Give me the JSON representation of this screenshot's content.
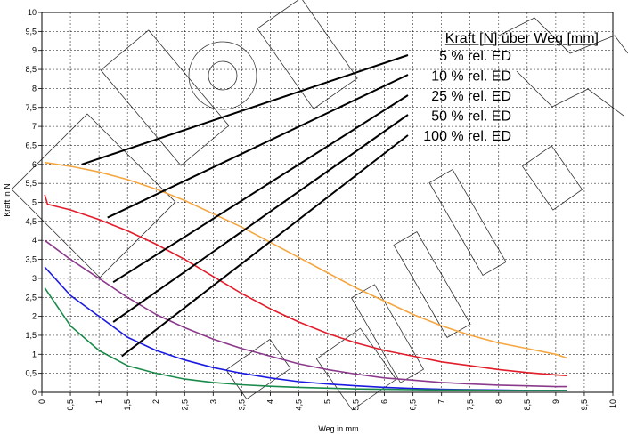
{
  "chart_data": {
    "type": "line",
    "title": "",
    "xlabel": "Weg in mm",
    "ylabel": "Kraft in N",
    "xlim": [
      0,
      10
    ],
    "ylim": [
      0,
      10
    ],
    "x_ticks": [
      "0",
      "0,5",
      "1",
      "1,5",
      "2",
      "2,5",
      "3",
      "3,5",
      "4",
      "4,5",
      "5",
      "5,5",
      "6",
      "6,5",
      "7",
      "7,5",
      "8",
      "8,5",
      "9",
      "9,5",
      "10"
    ],
    "y_ticks": [
      "0",
      "0,5",
      "1",
      "1,5",
      "2",
      "2,5",
      "3",
      "3,5",
      "4",
      "4,5",
      "5",
      "5,5",
      "6",
      "6,5",
      "7",
      "7,5",
      "8",
      "8,5",
      "9",
      "9,5",
      "10"
    ],
    "grid": true,
    "legend": {
      "title": "Kraft [N] über Weg [mm]",
      "position": "top-right",
      "entries": [
        "5 % rel. ED",
        "10 % rel. ED",
        "25 % rel. ED",
        "50 % rel. ED",
        "100 % rel. ED"
      ]
    },
    "series": [
      {
        "name": "5 % rel. ED",
        "color": "#f5a640",
        "x": [
          0.05,
          0.5,
          1,
          1.5,
          2,
          2.5,
          3,
          3.5,
          4,
          4.5,
          5,
          5.5,
          6,
          6.5,
          7,
          7.5,
          8,
          8.5,
          9,
          9.2
        ],
        "y": [
          6.05,
          5.95,
          5.8,
          5.6,
          5.35,
          5.05,
          4.7,
          4.35,
          3.95,
          3.55,
          3.15,
          2.75,
          2.4,
          2.05,
          1.75,
          1.5,
          1.3,
          1.15,
          1.0,
          0.9
        ]
      },
      {
        "name": "10 % rel. ED",
        "color": "#e21c2a",
        "x": [
          0.05,
          0.1,
          0.5,
          1,
          1.5,
          2,
          2.5,
          3,
          3.5,
          4,
          4.5,
          5,
          5.5,
          6,
          6.5,
          7,
          7.5,
          8,
          8.5,
          9,
          9.2
        ],
        "y": [
          5.2,
          4.95,
          4.8,
          4.55,
          4.25,
          3.9,
          3.5,
          3.05,
          2.6,
          2.2,
          1.85,
          1.55,
          1.3,
          1.1,
          0.95,
          0.8,
          0.7,
          0.6,
          0.52,
          0.46,
          0.44
        ]
      },
      {
        "name": "25 % rel. ED",
        "color": "#8b3a8b",
        "x": [
          0.05,
          0.5,
          1,
          1.5,
          2,
          2.5,
          3,
          3.5,
          4,
          4.5,
          5,
          5.5,
          6,
          6.5,
          7,
          7.5,
          8,
          8.5,
          9,
          9.2
        ],
        "y": [
          4.0,
          3.5,
          3.0,
          2.5,
          2.05,
          1.7,
          1.4,
          1.15,
          0.95,
          0.75,
          0.6,
          0.48,
          0.38,
          0.32,
          0.26,
          0.22,
          0.19,
          0.17,
          0.15,
          0.15
        ]
      },
      {
        "name": "50 % rel. ED",
        "color": "#1a1ae0",
        "x": [
          0.05,
          0.5,
          1,
          1.5,
          2,
          2.5,
          3,
          3.5,
          4,
          4.5,
          5,
          5.5,
          6,
          6.5,
          7,
          7.5,
          8,
          8.5,
          9,
          9.2
        ],
        "y": [
          3.3,
          2.55,
          2.0,
          1.45,
          1.1,
          0.85,
          0.65,
          0.5,
          0.38,
          0.28,
          0.22,
          0.17,
          0.13,
          0.1,
          0.08,
          0.07,
          0.06,
          0.05,
          0.05,
          0.05
        ]
      },
      {
        "name": "100 % rel. ED",
        "color": "#1a8a4a",
        "x": [
          0.05,
          0.5,
          1,
          1.5,
          2,
          2.5,
          3,
          3.5,
          4,
          4.5,
          5,
          5.5,
          6,
          6.5,
          7,
          7.5,
          8,
          8.5,
          9,
          9.2
        ],
        "y": [
          2.75,
          1.75,
          1.1,
          0.7,
          0.5,
          0.35,
          0.26,
          0.2,
          0.16,
          0.13,
          0.11,
          0.09,
          0.08,
          0.07,
          0.06,
          0.06,
          0.05,
          0.05,
          0.05,
          0.05
        ]
      }
    ],
    "leader_lines": [
      {
        "entry": "5 % rel. ED",
        "target": [
          0.7,
          6.0
        ]
      },
      {
        "entry": "10 % rel. ED",
        "target": [
          1.15,
          4.6
        ]
      },
      {
        "entry": "25 % rel. ED",
        "target": [
          1.25,
          2.9
        ]
      },
      {
        "entry": "50 % rel. ED",
        "target": [
          1.25,
          1.85
        ]
      },
      {
        "entry": "100 % rel. ED",
        "target": [
          1.4,
          0.95
        ]
      }
    ]
  }
}
